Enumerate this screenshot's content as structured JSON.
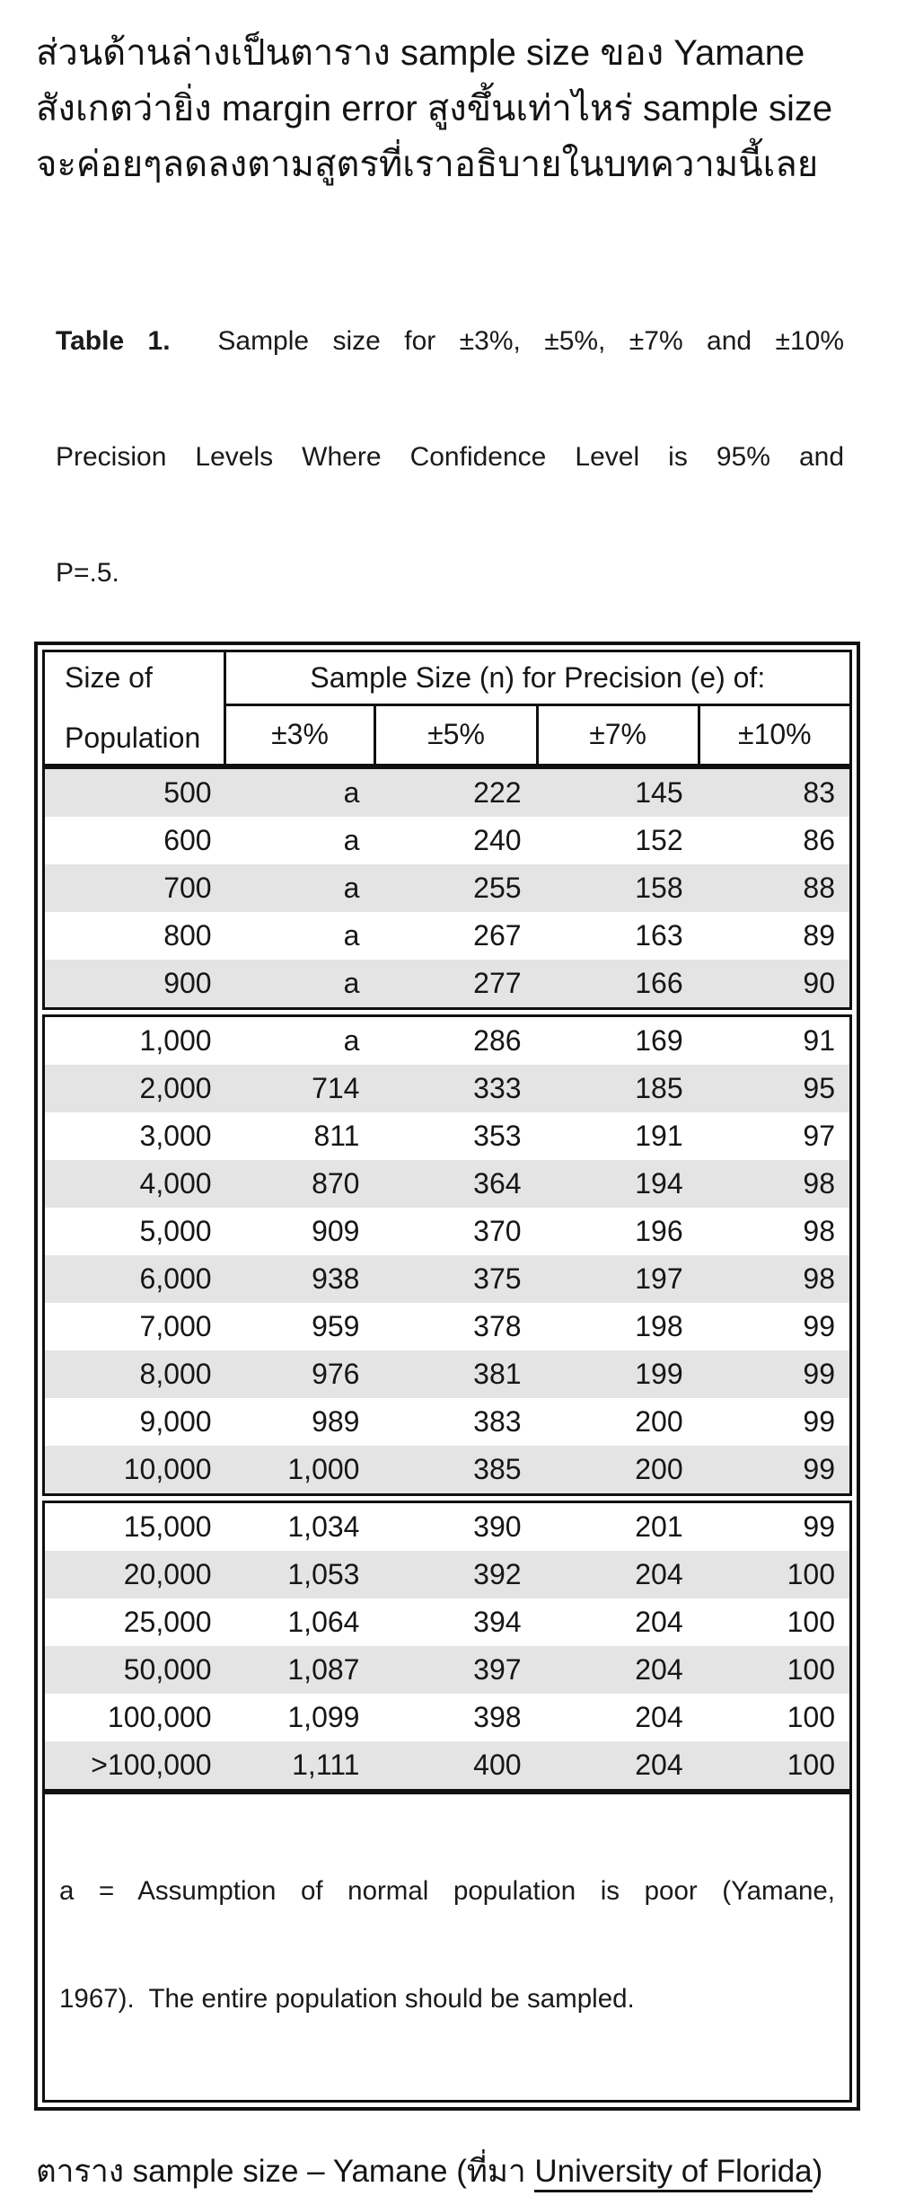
{
  "intro": {
    "lines": [
      "ส่วนด้านล่างเป็นตาราง sample size ของ Yamane",
      "สังเกตว่ายิ่ง margin error สูงขึ้นเท่าไหร่ sample size",
      "จะค่อยๆลดลงตามสูตรที่เราอธิบายในบทความนี้เลย"
    ]
  },
  "table_caption": {
    "label": "Table 1.",
    "line1_rest": " Sample size for ±3%, ±5%, ±7% and ±10%",
    "line2": "Precision Levels Where Confidence Level is 95% and",
    "line3": "P=.5."
  },
  "table": {
    "header": {
      "col1_lines": [
        "Size of",
        "Population"
      ],
      "span": "Sample Size (n) for Precision (e) of:",
      "precision": [
        "±3%",
        "±5%",
        "±7%",
        "±10%"
      ]
    },
    "groups": [
      [
        [
          "500",
          "a",
          "222",
          "145",
          "83"
        ],
        [
          "600",
          "a",
          "240",
          "152",
          "86"
        ],
        [
          "700",
          "a",
          "255",
          "158",
          "88"
        ],
        [
          "800",
          "a",
          "267",
          "163",
          "89"
        ],
        [
          "900",
          "a",
          "277",
          "166",
          "90"
        ]
      ],
      [
        [
          "1,000",
          "a",
          "286",
          "169",
          "91"
        ],
        [
          "2,000",
          "714",
          "333",
          "185",
          "95"
        ],
        [
          "3,000",
          "811",
          "353",
          "191",
          "97"
        ],
        [
          "4,000",
          "870",
          "364",
          "194",
          "98"
        ],
        [
          "5,000",
          "909",
          "370",
          "196",
          "98"
        ],
        [
          "6,000",
          "938",
          "375",
          "197",
          "98"
        ],
        [
          "7,000",
          "959",
          "378",
          "198",
          "99"
        ],
        [
          "8,000",
          "976",
          "381",
          "199",
          "99"
        ],
        [
          "9,000",
          "989",
          "383",
          "200",
          "99"
        ],
        [
          "10,000",
          "1,000",
          "385",
          "200",
          "99"
        ]
      ],
      [
        [
          "15,000",
          "1,034",
          "390",
          "201",
          "99"
        ],
        [
          "20,000",
          "1,053",
          "392",
          "204",
          "100"
        ],
        [
          "25,000",
          "1,064",
          "394",
          "204",
          "100"
        ],
        [
          "50,000",
          "1,087",
          "397",
          "204",
          "100"
        ],
        [
          "100,000",
          "1,099",
          "398",
          "204",
          "100"
        ],
        [
          ">100,000",
          "1,111",
          "400",
          "204",
          "100"
        ]
      ]
    ],
    "footnote_line1": "a = Assumption of normal population is poor (Yamane,",
    "footnote_line2": "1967).  The entire population should be sampled."
  },
  "bottom_caption": {
    "prefix": "ตาราง sample size – Yamane (ที่มา ",
    "link_text": "University of Florida",
    "suffix": ")"
  },
  "colors": {
    "band_gray": "#e4e4e4",
    "border": "#101010",
    "text": "#161616"
  }
}
